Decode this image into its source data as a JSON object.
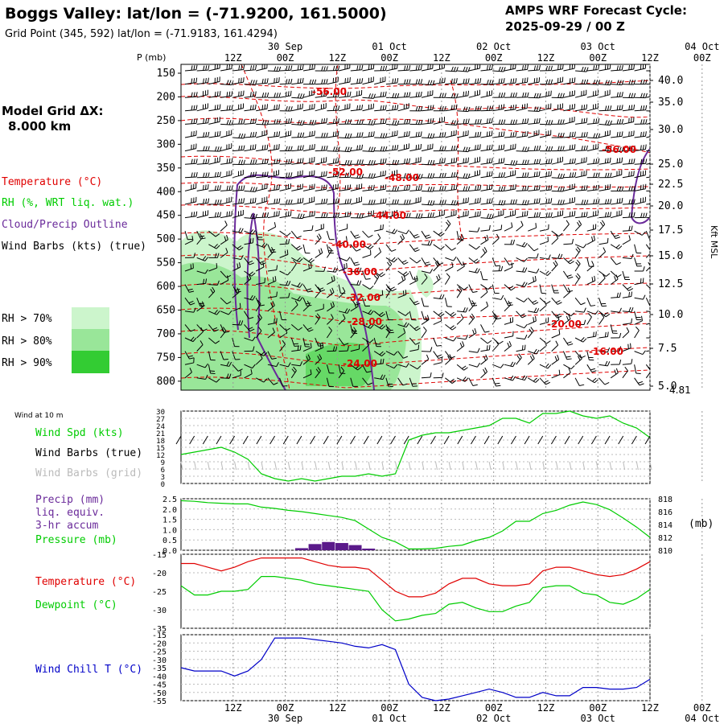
{
  "header": {
    "title": "Boggs Valley:  lat/lon = (-71.9200, 161.5000)",
    "subtitle": "Grid Point (345, 592) lat/lon = (-71.9183, 161.4294)",
    "cycle_label": "AMPS WRF Forecast Cycle:",
    "cycle_value": "2025-09-29 / 00  Z"
  },
  "time_axis": {
    "hour_labels": [
      "12Z",
      "00Z",
      "12Z",
      "00Z",
      "12Z",
      "00Z",
      "12Z",
      "00Z",
      "12Z",
      "00Z"
    ],
    "date_labels": [
      "30 Sep",
      "01 Oct",
      "02 Oct",
      "03 Oct",
      "04 Oct"
    ]
  },
  "left_panel": {
    "model_grid_label": "Model Grid ΔX:",
    "model_grid_value": "8.000 km",
    "legend_temperature": "Temperature (°C)",
    "legend_rh": "RH (%, WRT liq. wat.)",
    "legend_cloud": "Cloud/Precip Outline",
    "legend_wind": "Wind Barbs (kts) (true)",
    "rh70": "RH > 70%",
    "rh80": "RH > 80%",
    "rh90": "RH > 90%",
    "wind_10m": "Wind at 10 m",
    "wind_spd": "Wind Spd (kts)",
    "barbs_true": "Wind Barbs (true)",
    "barbs_grid": "Wind Barbs (grid)",
    "precip_1": "Precip (mm)",
    "precip_2": "liq. equiv.",
    "precip_3": "3-hr accum",
    "pressure": "Pressure (mb)",
    "temperature": "Temperature (°C)",
    "dewpoint": "Dewpoint (°C)",
    "windchill": "Wind Chill T (°C)"
  },
  "colors": {
    "temperature": "#e00000",
    "rh70": "#ccf5cc",
    "rh80": "#99e699",
    "rh90": "#33cc33",
    "cloud": "#6a2a9a",
    "wind_spd": "#00cc00",
    "windchill": "#0000c8",
    "precip": "#5a1a8a",
    "grid": "#999999"
  },
  "chart_data": [
    {
      "type": "contour",
      "title": "Vertical cross-section (time-height)",
      "ylabel_left": "P (mb)",
      "ylabel_right": "Kft MSL",
      "pressure_ticks": [
        "150",
        "200",
        "250",
        "300",
        "350",
        "400",
        "450",
        "500",
        "550",
        "600",
        "650",
        "700",
        "750",
        "800"
      ],
      "kft_ticks": [
        "40.0",
        "35.0",
        "30.0",
        "25.0",
        "22.5",
        "20.0",
        "17.5",
        "15.0",
        "12.5",
        "10.0",
        "7.5",
        "5.0"
      ],
      "surface_label": "4.81",
      "temperature_contour_labels": [
        "-56.00",
        "-56.00",
        "-52.00",
        "-48.00",
        "-44.00",
        "-40.00",
        "-36.00",
        "-32.00",
        "-28.00",
        "-24.00",
        "-20.00",
        "-16.00"
      ]
    },
    {
      "type": "line",
      "title": "Wind at 10 m",
      "y_ticks": [
        "30",
        "27",
        "24",
        "21",
        "18",
        "15",
        "12",
        "9",
        "6",
        "3",
        "0"
      ],
      "ylim": [
        0,
        30
      ],
      "series": [
        {
          "name": "Wind Spd (kts)",
          "values": [
            12,
            13,
            14,
            15,
            13,
            10,
            4,
            2,
            1,
            2,
            1,
            2,
            3,
            3,
            4,
            3,
            4,
            18,
            20,
            21,
            21,
            22,
            23,
            24,
            27,
            27,
            25,
            29,
            29,
            30,
            28,
            27,
            28,
            25,
            23,
            19
          ]
        }
      ]
    },
    {
      "type": "line+bar",
      "title": "Precip / Pressure",
      "y_ticks_left": [
        "2.5",
        "2.0",
        "1.5",
        "1.0",
        "0.5",
        "0.0"
      ],
      "y_ticks_right": [
        "818",
        "816",
        "814",
        "812",
        "810"
      ],
      "unit_right": "(mb)",
      "pressure_mb": [
        817.7,
        817.6,
        817.4,
        817.3,
        817.2,
        817.2,
        816.7,
        816.5,
        816.2,
        816.0,
        815.7,
        815.4,
        815.1,
        814.6,
        813.3,
        812.0,
        811.3,
        810.2,
        810.2,
        810.3,
        810.6,
        810.8,
        811.5,
        812.0,
        813.0,
        814.5,
        814.5,
        815.7,
        816.2,
        817.0,
        817.5,
        817.1,
        816.3,
        815.0,
        813.6,
        812.0
      ],
      "precip_mm": [
        0,
        0,
        0,
        0,
        0,
        0,
        0,
        0,
        0,
        0.1,
        0.3,
        0.4,
        0.35,
        0.25,
        0.08,
        0,
        0,
        0,
        0,
        0,
        0,
        0,
        0,
        0,
        0,
        0,
        0,
        0,
        0,
        0,
        0,
        0,
        0,
        0,
        0,
        0
      ]
    },
    {
      "type": "line",
      "title": "Temperature / Dewpoint",
      "y_ticks": [
        "-15",
        "-20",
        "-25",
        "-30",
        "-35"
      ],
      "ylim": [
        -35,
        -15
      ],
      "series": [
        {
          "name": "Temperature (°C)",
          "values": [
            -17.5,
            -17.5,
            -18.5,
            -19.5,
            -18.5,
            -17.0,
            -16.0,
            -16.0,
            -16.0,
            -16.0,
            -17.0,
            -18.0,
            -18.5,
            -18.5,
            -19.0,
            -22.0,
            -25.0,
            -26.5,
            -26.5,
            -25.5,
            -23.0,
            -21.5,
            -21.5,
            -23.0,
            -23.5,
            -23.5,
            -23.0,
            -19.5,
            -18.5,
            -18.5,
            -19.5,
            -20.5,
            -21.0,
            -20.5,
            -19.0,
            -17.0
          ]
        },
        {
          "name": "Dewpoint (°C)",
          "values": [
            -23.5,
            -26.0,
            -26.0,
            -25.0,
            -25.0,
            -24.5,
            -21.0,
            -21.0,
            -21.5,
            -22.0,
            -23.0,
            -23.5,
            -24.0,
            -24.5,
            -25.0,
            -30.0,
            -33.0,
            -32.5,
            -31.5,
            -31.0,
            -28.5,
            -28.0,
            -29.5,
            -30.5,
            -30.5,
            -29.0,
            -28.0,
            -24.0,
            -23.5,
            -23.5,
            -25.5,
            -26.0,
            -28.0,
            -28.5,
            -27.0,
            -24.5
          ]
        }
      ]
    },
    {
      "type": "line",
      "title": "Wind Chill",
      "y_ticks": [
        "-15",
        "-20",
        "-25",
        "-30",
        "-35",
        "-40",
        "-45",
        "-50",
        "-55"
      ],
      "ylim": [
        -55,
        -15
      ],
      "series": [
        {
          "name": "Wind Chill T (°C)",
          "values": [
            -35,
            -37,
            -37,
            -37,
            -40,
            -37,
            -30,
            -17,
            -17,
            -17,
            -18,
            -19,
            -20,
            -22,
            -23,
            -21,
            -24,
            -45,
            -53,
            -55,
            -54,
            -52,
            -50,
            -48,
            -50,
            -53,
            -53,
            -50,
            -52,
            -52,
            -47,
            -47,
            -48,
            -48,
            -47,
            -42
          ]
        }
      ]
    }
  ]
}
